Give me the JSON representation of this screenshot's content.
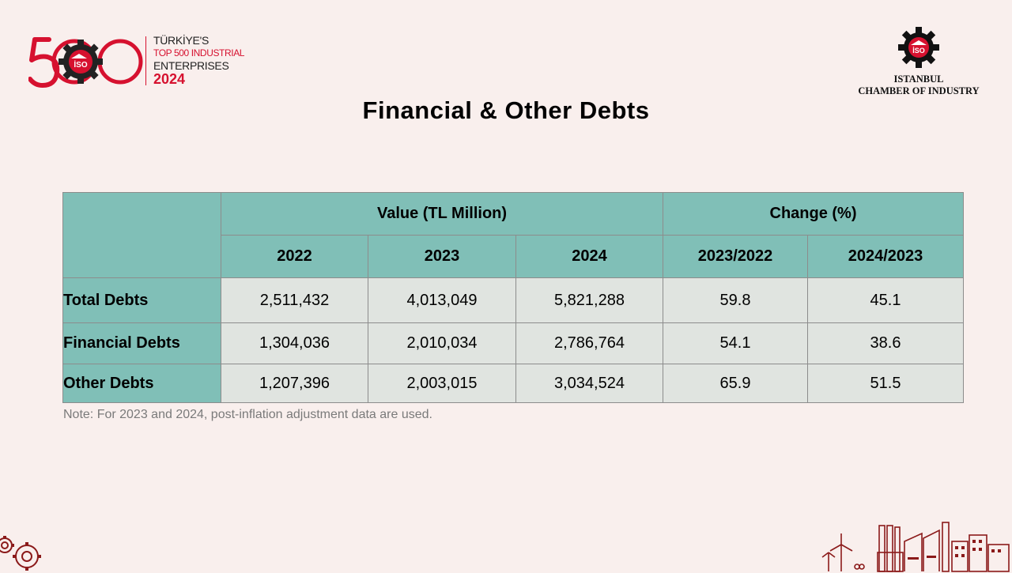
{
  "header": {
    "logo_left": {
      "number": "500",
      "line1": "TÜRKİYE'S",
      "line2": "TOP 500 INDUSTRIAL",
      "line3": "ENTERPRISES",
      "line4": "2024",
      "badge": "İSO"
    },
    "logo_right": {
      "badge": "İSO",
      "line1": "ISTANBUL",
      "line2": "CHAMBER OF INDUSTRY"
    }
  },
  "title": "Financial & Other Debts",
  "table": {
    "group_headers": [
      "Value (TL Million)",
      "Change (%)"
    ],
    "columns": [
      "2022",
      "2023",
      "2024",
      "2023/2022",
      "2024/2023"
    ],
    "rows": [
      {
        "label": "Total Debts",
        "cells": [
          "2,511,432",
          "4,013,049",
          "5,821,288",
          "59.8",
          "45.1"
        ]
      },
      {
        "label": "Financial Debts",
        "cells": [
          "1,304,036",
          "2,010,034",
          "2,786,764",
          "54.1",
          "38.6"
        ]
      },
      {
        "label": "Other Debts",
        "cells": [
          "1,207,396",
          "2,003,015",
          "3,034,524",
          "65.9",
          "51.5"
        ]
      }
    ]
  },
  "note": "Note: For 2023 and 2024, post-inflation adjustment data are used.",
  "colors": {
    "background": "#f9efed",
    "header_fill": "#80bfb7",
    "cell_fill": "#e0e4e0",
    "brand_red": "#d6112f",
    "decor_red": "#8b1a1a"
  },
  "decor": {
    "bottom_left": "gears-icon",
    "bottom_right": "industrial-skyline-icon"
  }
}
